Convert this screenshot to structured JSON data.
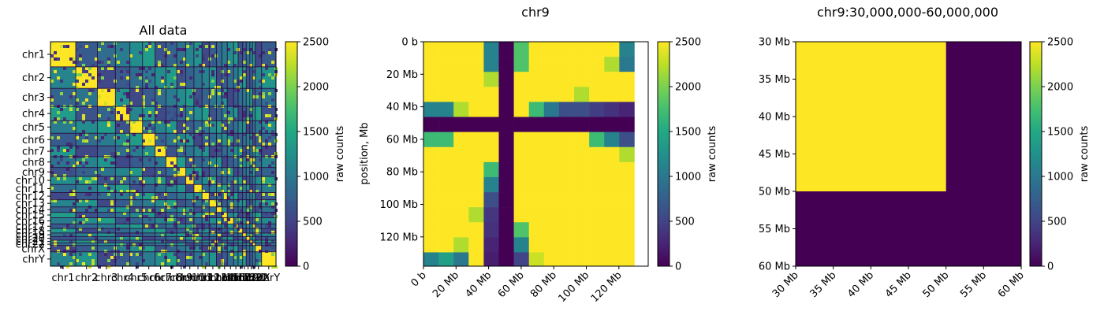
{
  "figure": {
    "colormap": "viridis",
    "colors": {
      "low": "#440154",
      "high": "#fde725",
      "frame": "#000000",
      "background": "#ffffff"
    }
  },
  "chart_data": [
    {
      "type": "heatmap",
      "title": "All data",
      "xlabel": "",
      "ylabel": "",
      "chromosomes": [
        "chr1",
        "chr2",
        "chr3",
        "chr4",
        "chr5",
        "chr6",
        "chr7",
        "chr8",
        "chr9",
        "chr10",
        "chr11",
        "chr12",
        "chr13",
        "chr14",
        "chr15",
        "chr16",
        "chr17",
        "chr18",
        "chr19",
        "chr20",
        "chr21",
        "chr22",
        "chrX",
        "chrY"
      ],
      "chromosome_sizes_mb": [
        28,
        24,
        20,
        16,
        14,
        14,
        12,
        12,
        10,
        9,
        9,
        8,
        8,
        6,
        6,
        7,
        5,
        5,
        4,
        4,
        3,
        3,
        7,
        16
      ],
      "x_tick_labels": [
        "chr1",
        "chr2",
        "chr3",
        "chr4",
        "chr5",
        "chr6",
        "chr7",
        "chr8",
        "chr9",
        "chr10",
        "chr11",
        "chr12",
        "chr13",
        "chr14",
        "chr15",
        "chr16",
        "chr17",
        "chr18",
        "chr19",
        "chr20",
        "chr21",
        "chr22",
        "chrX",
        "chrY"
      ],
      "y_tick_labels": [
        "chr1",
        "chr2",
        "chr3",
        "chr4",
        "chr5",
        "chr6",
        "chr7",
        "chr8",
        "chr9",
        "chr10",
        "chr11",
        "chr12",
        "chr13",
        "chr14",
        "chr15",
        "chr16",
        "chr17",
        "chr18",
        "chr19",
        "chr20",
        "chr21",
        "chr22",
        "chrX",
        "chrY"
      ],
      "colorbar": {
        "label": "raw counts",
        "range": [
          0,
          2500
        ],
        "ticks": [
          0,
          500,
          1000,
          1500,
          2000,
          2500
        ]
      }
    },
    {
      "type": "heatmap",
      "title": "chr9",
      "xlabel": "",
      "ylabel": "position, Mb",
      "bin_size_mb": 9.25,
      "range_mb": [
        0,
        138
      ],
      "x_ticks": [
        0,
        20,
        40,
        60,
        80,
        100,
        120
      ],
      "x_tick_labels": [
        "0 b",
        "20 Mb",
        "40 Mb",
        "60 Mb",
        "80 Mb",
        "100 Mb",
        "120 Mb"
      ],
      "y_ticks": [
        0,
        20,
        40,
        60,
        80,
        100,
        120
      ],
      "y_tick_labels": [
        "0 b",
        "20 Mb",
        "40 Mb",
        "60 Mb",
        "80 Mb",
        "100 Mb",
        "120 Mb"
      ],
      "matrix": [
        [
          2500,
          2500,
          2500,
          2500,
          1100,
          0,
          1800,
          2500,
          2500,
          2500,
          2500,
          2500,
          2500,
          1100
        ],
        [
          2500,
          2500,
          2500,
          2500,
          1100,
          0,
          1800,
          2500,
          2500,
          2500,
          2500,
          2500,
          2200,
          1000
        ],
        [
          2500,
          2500,
          2500,
          2500,
          2200,
          0,
          2500,
          2500,
          2500,
          2500,
          2500,
          2500,
          2500,
          2500
        ],
        [
          2500,
          2500,
          2500,
          2500,
          2500,
          0,
          2500,
          2500,
          2500,
          2500,
          2200,
          2500,
          2500,
          2500
        ],
        [
          1100,
          1100,
          2200,
          2500,
          2500,
          0,
          2500,
          1700,
          1000,
          600,
          600,
          450,
          350,
          250
        ],
        [
          0,
          0,
          0,
          0,
          0,
          0,
          0,
          0,
          0,
          0,
          0,
          0,
          0,
          0
        ],
        [
          1700,
          1700,
          2500,
          2500,
          2500,
          0,
          2500,
          2500,
          2500,
          2500,
          2500,
          1700,
          1100,
          600
        ],
        [
          2500,
          2500,
          2500,
          2500,
          2500,
          0,
          2500,
          2500,
          2500,
          2500,
          2500,
          2500,
          2500,
          2200
        ],
        [
          2500,
          2500,
          2500,
          2500,
          1700,
          0,
          2500,
          2500,
          2500,
          2500,
          2500,
          2500,
          2500,
          2500
        ],
        [
          2500,
          2500,
          2500,
          2500,
          1100,
          0,
          2500,
          2500,
          2500,
          2500,
          2500,
          2500,
          2500,
          2500
        ],
        [
          2500,
          2500,
          2500,
          2500,
          600,
          0,
          2500,
          2500,
          2500,
          2500,
          2500,
          2500,
          2500,
          2500
        ],
        [
          2500,
          2500,
          2500,
          2200,
          400,
          0,
          2500,
          2500,
          2500,
          2500,
          2500,
          2500,
          2500,
          2500
        ],
        [
          2500,
          2500,
          2500,
          2500,
          350,
          0,
          1800,
          2500,
          2500,
          2500,
          2500,
          2500,
          2500,
          2500
        ],
        [
          2500,
          2500,
          2200,
          2500,
          250,
          0,
          1100,
          2500,
          2500,
          2500,
          2500,
          2500,
          2500,
          2500
        ],
        [
          1100,
          1400,
          1000,
          2500,
          200,
          0,
          500,
          2300,
          2500,
          2500,
          2500,
          2500,
          2500,
          2500
        ]
      ],
      "colorbar": {
        "label": "raw counts",
        "range": [
          0,
          2500
        ],
        "ticks": [
          0,
          500,
          1000,
          1500,
          2000,
          2500
        ]
      }
    },
    {
      "type": "heatmap",
      "title": "chr9:30,000,000-60,000,000",
      "xlabel": "",
      "ylabel": "",
      "range_mb": [
        30,
        60
      ],
      "x_ticks": [
        30,
        35,
        40,
        45,
        50,
        55,
        60
      ],
      "x_tick_labels": [
        "30 Mb",
        "35 Mb",
        "40 Mb",
        "45 Mb",
        "50 Mb",
        "55 Mb",
        "60 Mb"
      ],
      "y_ticks": [
        30,
        35,
        40,
        45,
        50,
        55,
        60
      ],
      "y_tick_labels": [
        "30 Mb",
        "35 Mb",
        "40 Mb",
        "45 Mb",
        "50 Mb",
        "55 Mb",
        "60 Mb"
      ],
      "blocks": [
        {
          "x": [
            30,
            50
          ],
          "y": [
            30,
            50
          ],
          "value": 2500
        },
        {
          "x": [
            50,
            60
          ],
          "y": [
            30,
            50
          ],
          "value": 0
        },
        {
          "x": [
            30,
            60
          ],
          "y": [
            50,
            60
          ],
          "value": 0
        }
      ],
      "colorbar": {
        "label": "raw counts",
        "range": [
          0,
          2500
        ],
        "ticks": [
          0,
          500,
          1000,
          1500,
          2000,
          2500
        ]
      }
    }
  ]
}
